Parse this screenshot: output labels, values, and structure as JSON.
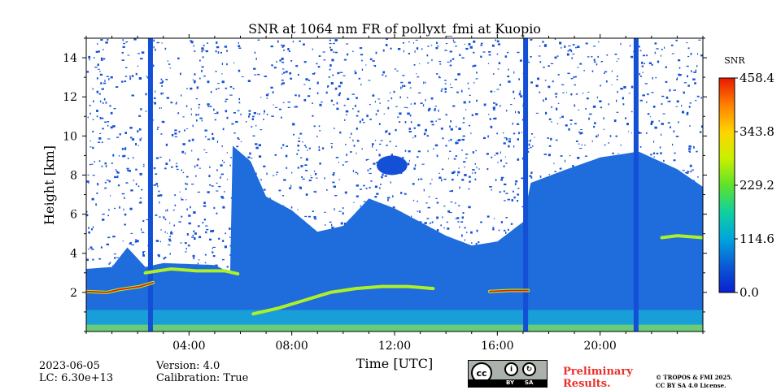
{
  "chart_data": {
    "type": "heatmap",
    "title": "SNR at 1064 nm FR of pollyxt_fmi at Kuopio",
    "xlabel": "Time [UTC]",
    "ylabel": "Height [km]",
    "xlim": [
      0,
      24
    ],
    "ylim": [
      0,
      15
    ],
    "x_ticks": [
      4,
      8,
      12,
      16,
      20
    ],
    "x_tick_labels": [
      "04:00",
      "08:00",
      "12:00",
      "16:00",
      "20:00"
    ],
    "y_ticks": [
      2,
      4,
      6,
      8,
      10,
      12,
      14
    ],
    "y_tick_labels": [
      "2",
      "4",
      "6",
      "8",
      "10",
      "12",
      "14"
    ],
    "colorbar": {
      "label": "SNR",
      "min": 0.0,
      "max": 458.4,
      "ticks": [
        0.0,
        114.6,
        229.2,
        343.8,
        458.4
      ],
      "tick_labels": [
        "0.0",
        "114.6",
        "229.2",
        "343.8",
        "458.4"
      ],
      "colormap": [
        "#0a1fd0",
        "#0a5ad6",
        "#00a5dc",
        "#10d0a0",
        "#5ee22a",
        "#c8f000",
        "#ffd400",
        "#ff8000",
        "#e81a00"
      ]
    },
    "colors": {
      "background": "#ffffff",
      "noise": "#1450d6",
      "signal_low": "#1f6cdc",
      "near_surface": "#18a8d8",
      "layer": "#aef028",
      "peak": "#e81a00"
    },
    "layer_profiles": {
      "signal_top_km": [
        [
          0.0,
          3.2
        ],
        [
          1.0,
          3.3
        ],
        [
          1.6,
          4.3
        ],
        [
          2.3,
          3.3
        ],
        [
          3.0,
          3.5
        ],
        [
          5.0,
          3.4
        ],
        [
          5.6,
          3.0
        ],
        [
          5.7,
          9.5
        ],
        [
          6.4,
          8.7
        ],
        [
          7.0,
          6.9
        ],
        [
          8.0,
          6.2
        ],
        [
          9.0,
          5.1
        ],
        [
          10.0,
          5.4
        ],
        [
          11.0,
          6.8
        ],
        [
          12.0,
          6.3
        ],
        [
          13.0,
          5.6
        ],
        [
          14.0,
          4.9
        ],
        [
          15.0,
          4.4
        ],
        [
          16.0,
          4.6
        ],
        [
          17.0,
          5.6
        ],
        [
          17.3,
          7.6
        ],
        [
          18.5,
          8.2
        ],
        [
          20.0,
          8.9
        ],
        [
          21.5,
          9.2
        ],
        [
          23.0,
          8.3
        ],
        [
          24.0,
          7.4
        ]
      ],
      "layer_lines": [
        {
          "name": "residual-layer-1",
          "points": [
            [
              0.0,
              2.05
            ],
            [
              0.8,
              2.0
            ],
            [
              1.3,
              2.15
            ],
            [
              2.1,
              2.3
            ],
            [
              2.6,
              2.5
            ]
          ],
          "color": "peak"
        },
        {
          "name": "residual-layer-2",
          "points": [
            [
              2.3,
              3.0
            ],
            [
              3.3,
              3.2
            ],
            [
              4.3,
              3.1
            ],
            [
              5.4,
              3.1
            ],
            [
              5.9,
              2.95
            ]
          ],
          "color": "layer"
        },
        {
          "name": "boundary-layer-top",
          "points": [
            [
              6.5,
              0.9
            ],
            [
              7.5,
              1.2
            ],
            [
              8.5,
              1.6
            ],
            [
              9.5,
              2.0
            ],
            [
              10.5,
              2.2
            ],
            [
              11.5,
              2.3
            ],
            [
              12.5,
              2.3
            ],
            [
              13.5,
              2.2
            ]
          ],
          "color": "layer"
        },
        {
          "name": "evening-layer",
          "points": [
            [
              15.7,
              2.05
            ],
            [
              16.5,
              2.1
            ],
            [
              17.2,
              2.1
            ]
          ],
          "color": "peak"
        },
        {
          "name": "late-layer",
          "points": [
            [
              22.4,
              4.8
            ],
            [
              23.0,
              4.9
            ],
            [
              24.0,
              4.8
            ]
          ],
          "color": "layer"
        }
      ],
      "isolated_cloud": {
        "center": [
          11.9,
          8.5
        ],
        "width_h": 1.2,
        "height_km": 1.0
      },
      "vertical_columns_h": [
        2.5,
        17.1,
        21.4
      ]
    }
  },
  "footer": {
    "date": "2023-06-05",
    "lc": "LC: 6.30e+13",
    "version": "Version: 4.0",
    "calibration": "Calibration: True",
    "cc_by": "BY",
    "cc_sa": "SA",
    "cc": "cc",
    "preliminary_line1": "Preliminary",
    "preliminary_line2": "Results.",
    "copyright_line1": "© TROPOS & FMI 2025.",
    "copyright_line2": "CC BY SA 4.0 License."
  }
}
